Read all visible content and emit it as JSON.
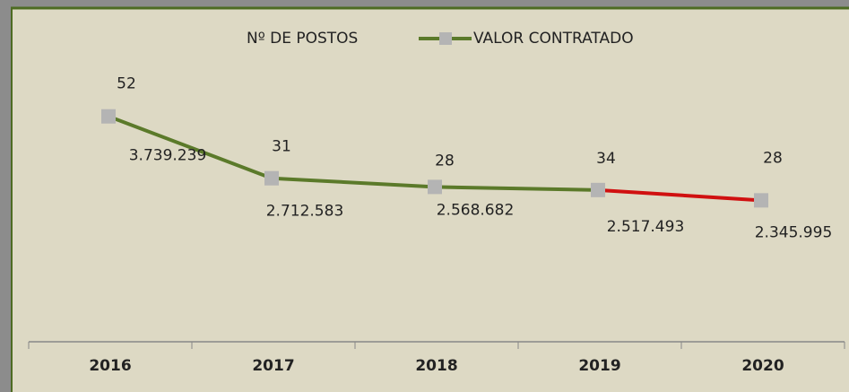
{
  "chart_data": {
    "type": "line",
    "categories": [
      "2016",
      "2017",
      "2018",
      "2019",
      "2020"
    ],
    "series": [
      {
        "name": "Nº DE POSTOS",
        "values": [
          52,
          31,
          28,
          34,
          28
        ]
      },
      {
        "name": "VALOR CONTRATADO",
        "color": "#5b7a2a",
        "marker_color": "#b4b4b4",
        "segment_colors": [
          "#5b7a2a",
          "#5b7a2a",
          "#5b7a2a",
          "#d01010"
        ],
        "values": [
          3739239,
          2712583,
          2568682,
          2517493,
          2345995
        ],
        "value_labels": [
          "3.739.239",
          "2.712.583",
          "2.568.682",
          "2.517.493",
          "2.345.995"
        ]
      }
    ],
    "ylim": [
      0,
      5000000
    ]
  }
}
